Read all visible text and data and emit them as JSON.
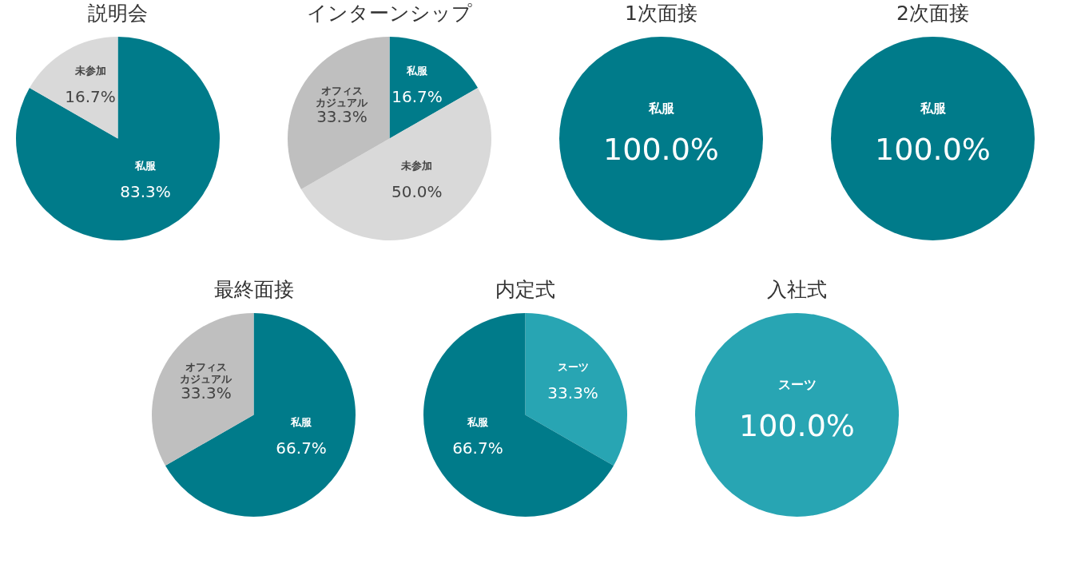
{
  "chart_data": [
    {
      "type": "pie",
      "title": "説明会",
      "categories": [
        "私服",
        "未参加"
      ],
      "values": [
        83.3,
        16.7
      ],
      "colors": [
        "#007b8a",
        "#d9d9d9"
      ],
      "value_labels": [
        "83.3%",
        "16.7%"
      ],
      "legend": false
    },
    {
      "type": "pie",
      "title": "インターンシップ",
      "categories": [
        "私服",
        "未参加",
        "オフィスカジュアル"
      ],
      "values": [
        16.7,
        50.0,
        33.3
      ],
      "colors": [
        "#007b8a",
        "#d9d9d9",
        "#bfbfbf"
      ],
      "value_labels": [
        "16.7%",
        "50.0%",
        "33.3%"
      ],
      "legend": false
    },
    {
      "type": "pie",
      "title": "1次面接",
      "categories": [
        "私服"
      ],
      "values": [
        100.0
      ],
      "colors": [
        "#007b8a"
      ],
      "value_labels": [
        "100.0%"
      ],
      "legend": false
    },
    {
      "type": "pie",
      "title": "2次面接",
      "categories": [
        "私服"
      ],
      "values": [
        100.0
      ],
      "colors": [
        "#007b8a"
      ],
      "value_labels": [
        "100.0%"
      ],
      "legend": false
    },
    {
      "type": "pie",
      "title": "最終面接",
      "categories": [
        "私服",
        "オフィスカジュアル"
      ],
      "values": [
        66.7,
        33.3
      ],
      "colors": [
        "#007b8a",
        "#bfbfbf"
      ],
      "value_labels": [
        "66.7%",
        "33.3%"
      ],
      "legend": false
    },
    {
      "type": "pie",
      "title": "内定式",
      "categories": [
        "スーツ",
        "私服"
      ],
      "values": [
        33.3,
        66.7
      ],
      "colors": [
        "#28a5b3",
        "#007b8a"
      ],
      "value_labels": [
        "33.3%",
        "66.7%"
      ],
      "legend": false
    },
    {
      "type": "pie",
      "title": "入社式",
      "categories": [
        "スーツ"
      ],
      "values": [
        100.0
      ],
      "colors": [
        "#28a5b3"
      ],
      "value_labels": [
        "100.0%"
      ],
      "legend": false
    }
  ]
}
